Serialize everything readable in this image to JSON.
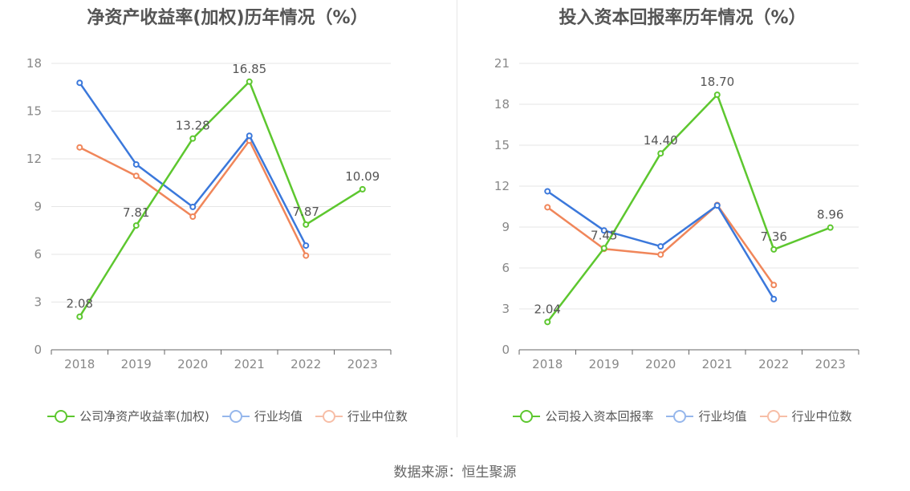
{
  "chart_data": [
    {
      "type": "line",
      "title": "净资产收益率(加权)历年情况（%）",
      "categories": [
        "2018",
        "2019",
        "2020",
        "2021",
        "2022",
        "2023"
      ],
      "ylim": [
        0,
        18
      ],
      "yticks": [
        0,
        3,
        6,
        9,
        12,
        15,
        18
      ],
      "grid": true,
      "legend_position": "bottom",
      "series": [
        {
          "name": "公司净资产收益率(加权)",
          "color": "#5dc72f",
          "values": [
            2.08,
            7.81,
            13.28,
            16.85,
            7.87,
            10.09
          ],
          "labels": [
            "2.08",
            "7.81",
            "13.28",
            "16.85",
            "7.87",
            "10.09"
          ]
        },
        {
          "name": "行业均值",
          "color": "#3b78db",
          "values": [
            16.78,
            11.65,
            8.98,
            13.45,
            6.55,
            null
          ]
        },
        {
          "name": "行业中位数",
          "color": "#f0865a",
          "values": [
            12.72,
            10.93,
            8.37,
            13.15,
            5.92,
            null
          ]
        }
      ]
    },
    {
      "type": "line",
      "title": "投入资本回报率历年情况（%）",
      "categories": [
        "2018",
        "2019",
        "2020",
        "2021",
        "2022",
        "2023"
      ],
      "ylim": [
        0,
        21
      ],
      "yticks": [
        0,
        3,
        6,
        9,
        12,
        15,
        18,
        21
      ],
      "grid": true,
      "legend_position": "bottom",
      "series": [
        {
          "name": "公司投入资本回报率",
          "color": "#5dc72f",
          "values": [
            2.04,
            7.45,
            14.4,
            18.7,
            7.36,
            8.96
          ],
          "labels": [
            "2.04",
            "7.45",
            "14.40",
            "18.70",
            "7.36",
            "8.96"
          ]
        },
        {
          "name": "行业均值",
          "color": "#3b78db",
          "values": [
            11.62,
            8.75,
            7.58,
            10.58,
            3.72,
            null
          ]
        },
        {
          "name": "行业中位数",
          "color": "#f0865a",
          "values": [
            10.45,
            7.4,
            6.98,
            10.62,
            4.75,
            null
          ]
        }
      ]
    }
  ],
  "footer": {
    "source": "数据来源：恒生聚源"
  }
}
